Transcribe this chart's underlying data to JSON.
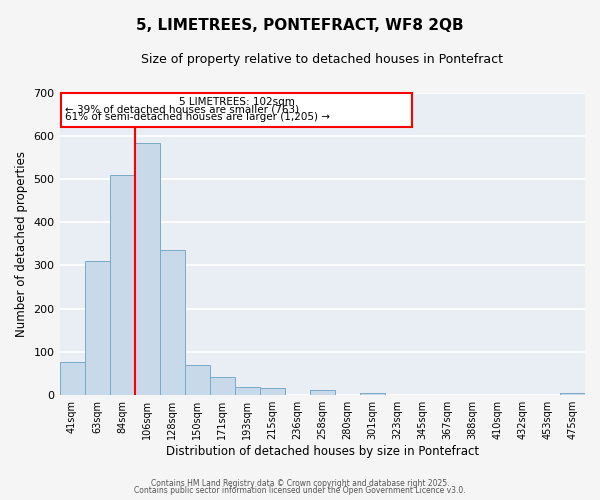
{
  "title": "5, LIMETREES, PONTEFRACT, WF8 2QB",
  "subtitle": "Size of property relative to detached houses in Pontefract",
  "xlabel": "Distribution of detached houses by size in Pontefract",
  "ylabel": "Number of detached properties",
  "bar_color": "#c8daea",
  "bar_edge_color": "#7aaac8",
  "fig_bg_color": "#f5f5f5",
  "plot_bg_color": "#e8eef4",
  "grid_color": "#ffffff",
  "bins": [
    "41sqm",
    "63sqm",
    "84sqm",
    "106sqm",
    "128sqm",
    "150sqm",
    "171sqm",
    "193sqm",
    "215sqm",
    "236sqm",
    "258sqm",
    "280sqm",
    "301sqm",
    "323sqm",
    "345sqm",
    "367sqm",
    "388sqm",
    "410sqm",
    "432sqm",
    "453sqm",
    "475sqm"
  ],
  "values": [
    75,
    310,
    510,
    585,
    335,
    70,
    40,
    18,
    15,
    0,
    12,
    0,
    5,
    0,
    0,
    0,
    0,
    0,
    0,
    0,
    5
  ],
  "ylim": [
    0,
    700
  ],
  "yticks": [
    0,
    100,
    200,
    300,
    400,
    500,
    600,
    700
  ],
  "marker_label": "5 LIMETREES: 102sqm",
  "annotation_line1": "← 39% of detached houses are smaller (763)",
  "annotation_line2": "61% of semi-detached houses are larger (1,205) →",
  "footer1": "Contains HM Land Registry data © Crown copyright and database right 2025.",
  "footer2": "Contains public sector information licensed under the Open Government Licence v3.0.",
  "red_line_bin_index": 3
}
